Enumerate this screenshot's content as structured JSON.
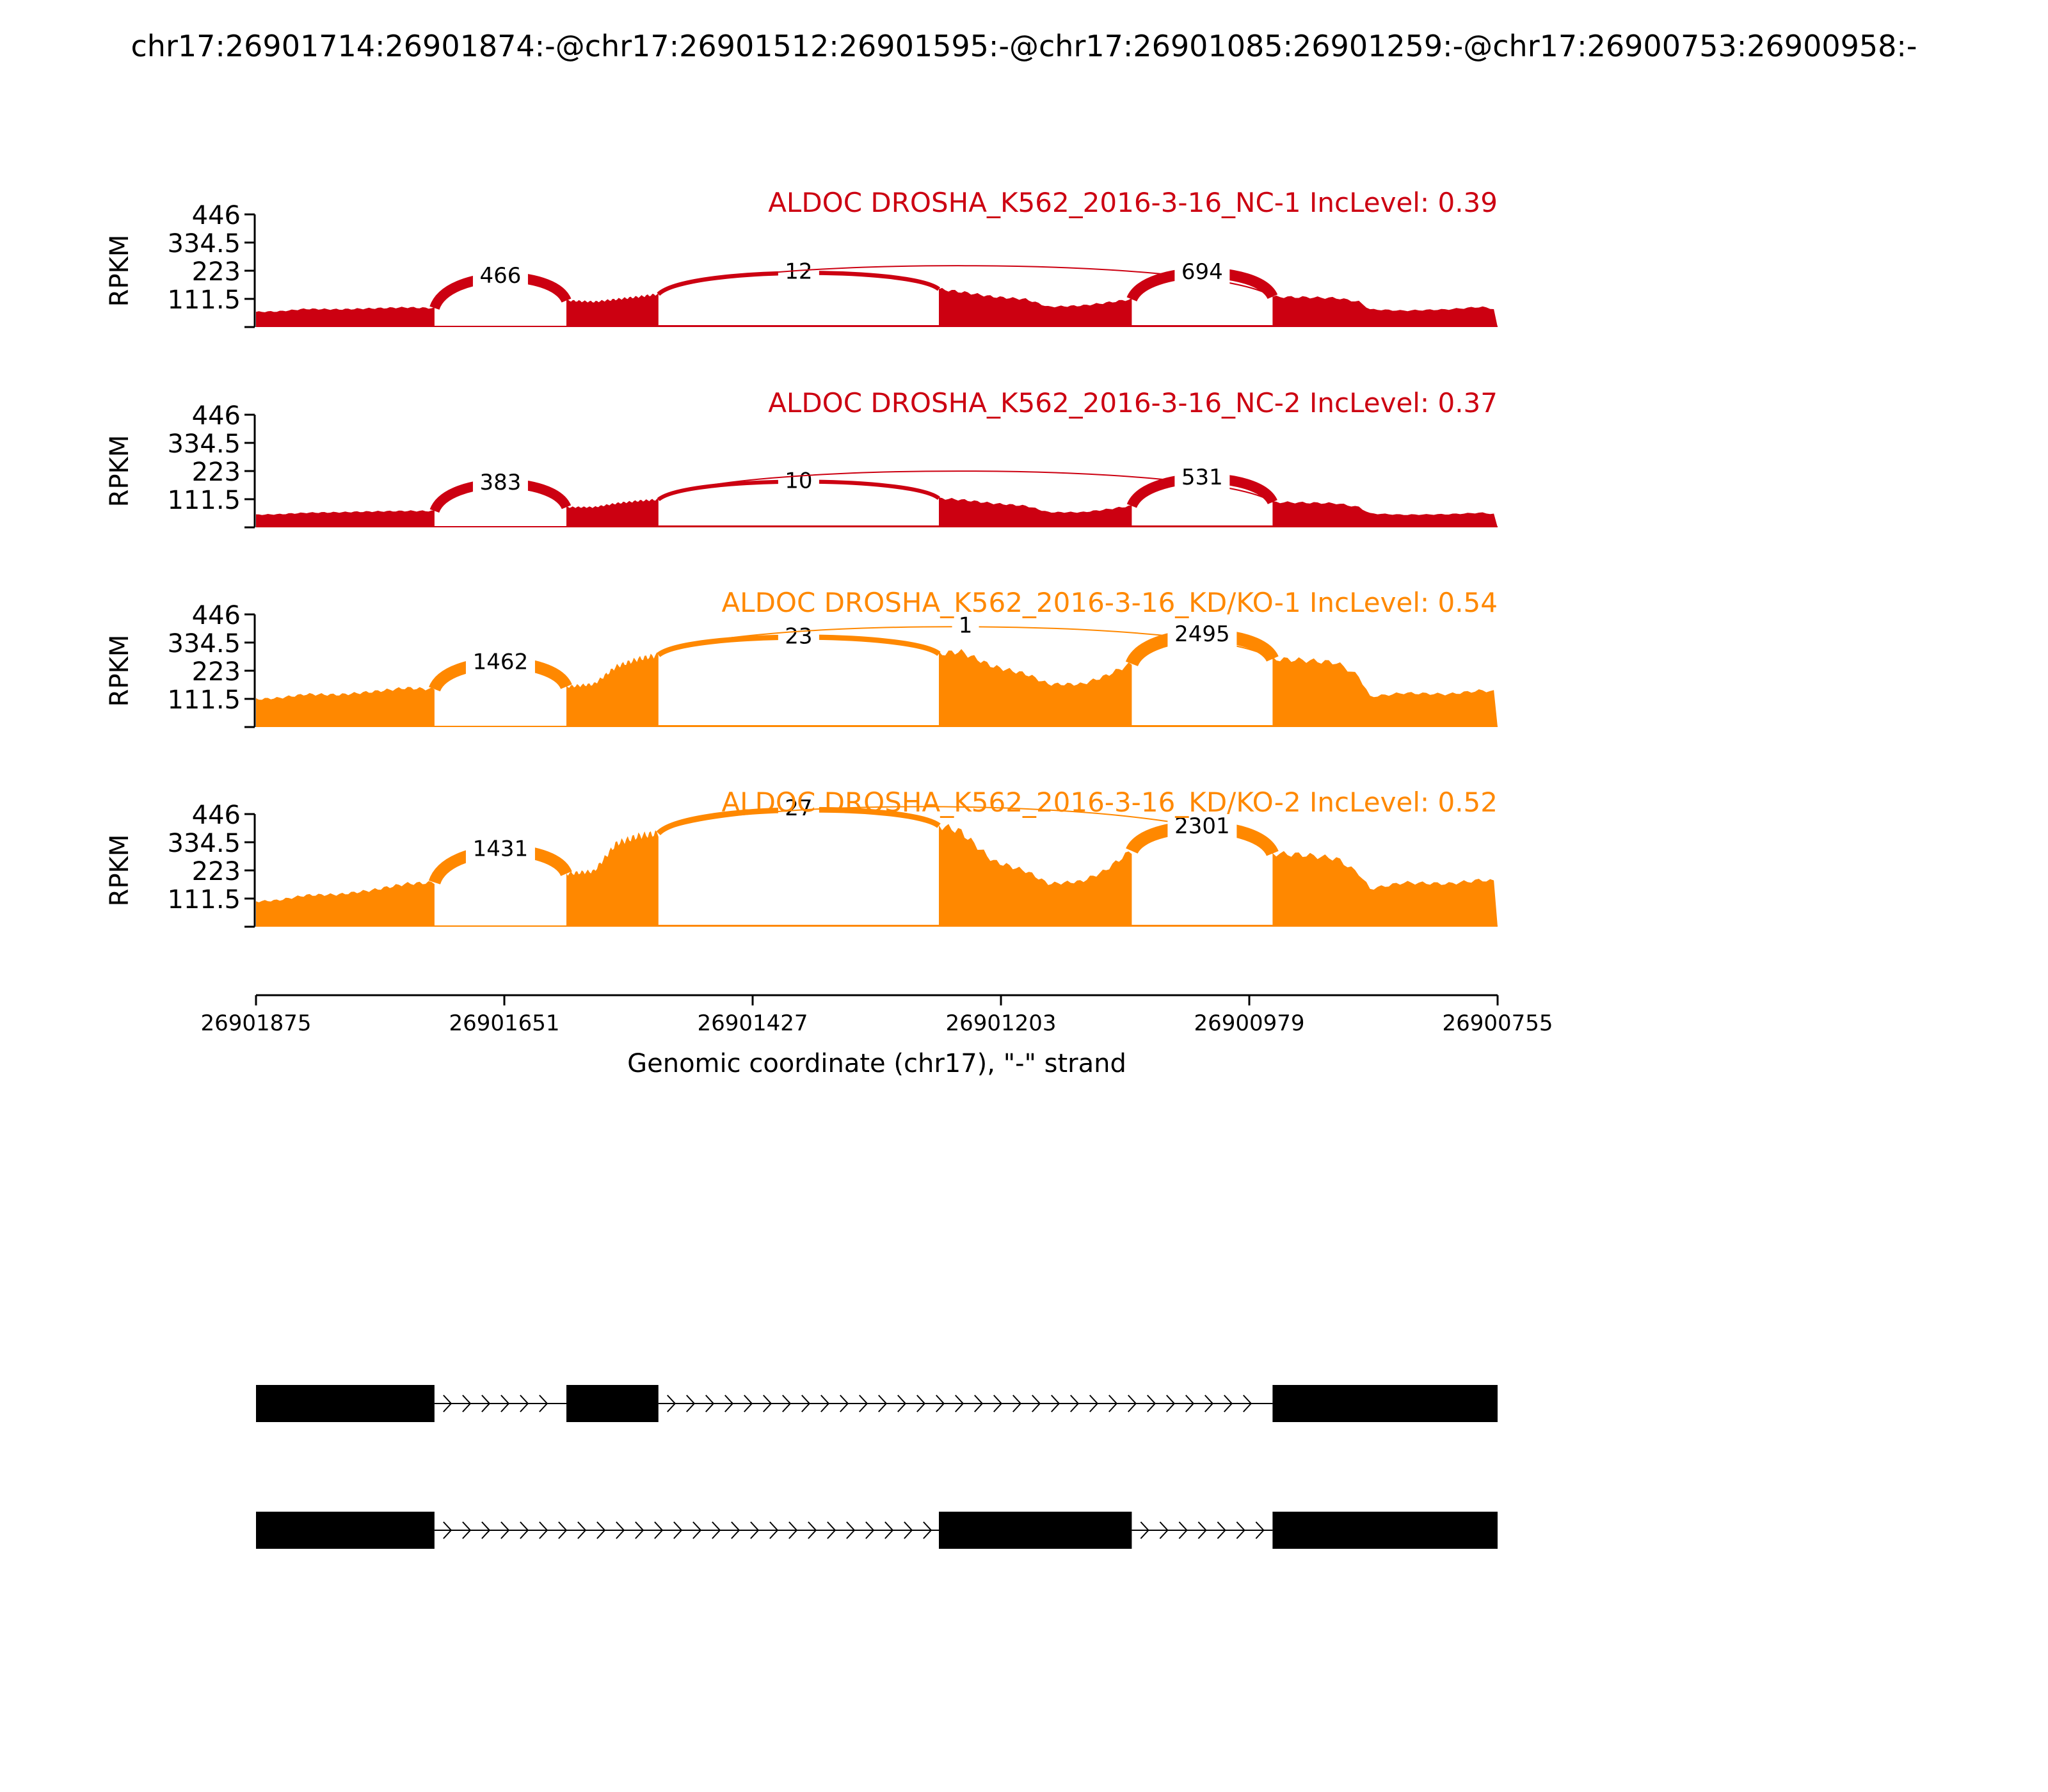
{
  "title": "chr17:26901714:26901874:-@chr17:26901512:26901595:-@chr17:26901085:26901259:-@chr17:26900753:26900958:-",
  "chart_data": {
    "type": "area",
    "ylabel": "RPKM",
    "ylim": [
      0,
      446
    ],
    "yticks": [
      "111.5",
      "223",
      "334.5",
      "446"
    ],
    "xlim": [
      26901875,
      26900755
    ],
    "xticks": [
      "26901875",
      "26901651",
      "26901427",
      "26901203",
      "26900979",
      "26900755"
    ],
    "xlabel": "Genomic coordinate (chr17), \"-\" strand",
    "exons": [
      [
        26901875,
        26901714
      ],
      [
        26901595,
        26901512
      ],
      [
        26901259,
        26901085
      ],
      [
        26900958,
        26900755
      ]
    ],
    "coverage_breaks": [
      26901875,
      26901714,
      26901595,
      26901512,
      26901259,
      26901085,
      26900958,
      26900755
    ],
    "junctions": [
      {
        "id": "j1",
        "from": 26901714,
        "to": 26901595
      },
      {
        "id": "j2",
        "from": 26901512,
        "to": 26901259
      },
      {
        "id": "j3",
        "from": 26901512,
        "to": 26900958
      },
      {
        "id": "j4",
        "from": 26901085,
        "to": 26900958
      }
    ],
    "samples": [
      {
        "label": "ALDOC DROSHA_K562_2016-3-16_NC-1 IncLevel: 0.39",
        "color": "#cc0011",
        "coverage": [
          [
            26901875,
            60
          ],
          [
            26901855,
            62
          ],
          [
            26901830,
            72
          ],
          [
            26901800,
            70
          ],
          [
            26901770,
            74
          ],
          [
            26901740,
            78
          ],
          [
            26901716,
            75
          ],
          [
            26901594,
            105
          ],
          [
            26901570,
            100
          ],
          [
            26901550,
            110
          ],
          [
            26901530,
            120
          ],
          [
            26901513,
            130
          ],
          [
            26901258,
            150
          ],
          [
            26901240,
            140
          ],
          [
            26901210,
            120
          ],
          [
            26901180,
            110
          ],
          [
            26901160,
            80
          ],
          [
            26901130,
            85
          ],
          [
            26901110,
            95
          ],
          [
            26901086,
            110
          ],
          [
            26900957,
            120
          ],
          [
            26900930,
            118
          ],
          [
            26900900,
            115
          ],
          [
            26900880,
            100
          ],
          [
            26900870,
            70
          ],
          [
            26900840,
            65
          ],
          [
            26900800,
            70
          ],
          [
            26900770,
            80
          ],
          [
            26900756,
            70
          ]
        ],
        "junctions": {
          "j1": "466",
          "j2": "12",
          "j3": "",
          "j4": "694"
        }
      },
      {
        "label": "ALDOC DROSHA_K562_2016-3-16_NC-2 IncLevel: 0.37",
        "color": "#cc0011",
        "coverage": [
          [
            26901875,
            50
          ],
          [
            26901855,
            52
          ],
          [
            26901830,
            58
          ],
          [
            26901800,
            60
          ],
          [
            26901770,
            63
          ],
          [
            26901740,
            65
          ],
          [
            26901716,
            65
          ],
          [
            26901594,
            80
          ],
          [
            26901570,
            80
          ],
          [
            26901550,
            95
          ],
          [
            26901530,
            105
          ],
          [
            26901513,
            110
          ],
          [
            26901258,
            115
          ],
          [
            26901240,
            110
          ],
          [
            26901210,
            95
          ],
          [
            26901180,
            85
          ],
          [
            26901160,
            60
          ],
          [
            26901130,
            60
          ],
          [
            26901110,
            70
          ],
          [
            26901086,
            85
          ],
          [
            26900957,
            100
          ],
          [
            26900930,
            98
          ],
          [
            26900900,
            95
          ],
          [
            26900880,
            80
          ],
          [
            26900870,
            55
          ],
          [
            26900840,
            50
          ],
          [
            26900800,
            52
          ],
          [
            26900770,
            58
          ],
          [
            26900756,
            52
          ]
        ],
        "junctions": {
          "j1": "383",
          "j2": "10",
          "j3": "",
          "j4": "531"
        }
      },
      {
        "label": "ALDOC DROSHA_K562_2016-3-16_KD/KO-1 IncLevel: 0.54",
        "color": "#ff8800",
        "coverage": [
          [
            26901875,
            110
          ],
          [
            26901855,
            115
          ],
          [
            26901830,
            130
          ],
          [
            26901800,
            128
          ],
          [
            26901770,
            140
          ],
          [
            26901740,
            155
          ],
          [
            26901716,
            150
          ],
          [
            26901594,
            160
          ],
          [
            26901570,
            170
          ],
          [
            26901550,
            240
          ],
          [
            26901530,
            270
          ],
          [
            26901513,
            285
          ],
          [
            26901258,
            290
          ],
          [
            26901240,
            300
          ],
          [
            26901210,
            240
          ],
          [
            26901180,
            210
          ],
          [
            26901160,
            170
          ],
          [
            26901130,
            170
          ],
          [
            26901110,
            200
          ],
          [
            26901086,
            250
          ],
          [
            26900957,
            270
          ],
          [
            26900930,
            265
          ],
          [
            26900900,
            255
          ],
          [
            26900880,
            200
          ],
          [
            26900870,
            120
          ],
          [
            26900840,
            135
          ],
          [
            26900800,
            130
          ],
          [
            26900770,
            145
          ],
          [
            26900756,
            140
          ]
        ],
        "junctions": {
          "j1": "1462",
          "j2": "23",
          "j3": "1",
          "j4": "2495"
        }
      },
      {
        "label": "ALDOC DROSHA_K562_2016-3-16_KD/KO-2 IncLevel: 0.52",
        "color": "#ff8800",
        "coverage": [
          [
            26901875,
            100
          ],
          [
            26901855,
            105
          ],
          [
            26901830,
            125
          ],
          [
            26901800,
            128
          ],
          [
            26901770,
            145
          ],
          [
            26901740,
            170
          ],
          [
            26901716,
            175
          ],
          [
            26901594,
            210
          ],
          [
            26901570,
            220
          ],
          [
            26901550,
            330
          ],
          [
            26901530,
            360
          ],
          [
            26901513,
            370
          ],
          [
            26901258,
            400
          ],
          [
            26901240,
            380
          ],
          [
            26901210,
            260
          ],
          [
            26901180,
            220
          ],
          [
            26901160,
            170
          ],
          [
            26901130,
            180
          ],
          [
            26901110,
            220
          ],
          [
            26901086,
            300
          ],
          [
            26900957,
            290
          ],
          [
            26900930,
            285
          ],
          [
            26900900,
            270
          ],
          [
            26900880,
            210
          ],
          [
            26900870,
            150
          ],
          [
            26900840,
            175
          ],
          [
            26900800,
            170
          ],
          [
            26900770,
            185
          ],
          [
            26900756,
            180
          ]
        ],
        "junctions": {
          "j1": "1431",
          "j2": "27",
          "j3": "",
          "j4": "2301"
        }
      }
    ],
    "isoforms": [
      {
        "exons": [
          [
            26901875,
            26901714
          ],
          [
            26901595,
            26901512
          ],
          [
            26900958,
            26900755
          ]
        ]
      },
      {
        "exons": [
          [
            26901875,
            26901714
          ],
          [
            26901259,
            26901085
          ],
          [
            26900958,
            26900755
          ]
        ]
      }
    ]
  }
}
